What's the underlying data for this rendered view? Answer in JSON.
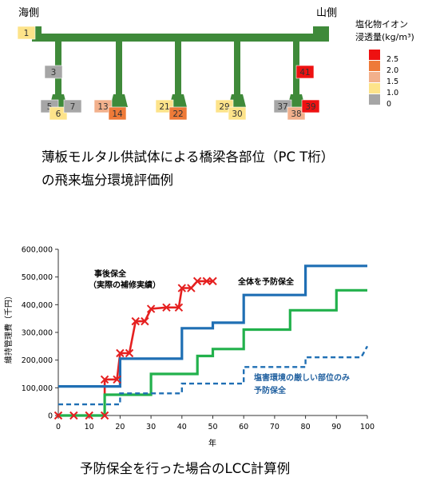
{
  "diagram": {
    "left_label": "海側",
    "right_label": "山側",
    "legend_title_1": "塩化物イオン",
    "legend_title_2": "浸透量(kg/m³)",
    "legend": [
      {
        "label": "2.5",
        "color": "#ee1111"
      },
      {
        "label": "2.0",
        "color": "#ee7a38"
      },
      {
        "label": "1.5",
        "color": "#f2b08c"
      },
      {
        "label": "1.0",
        "color": "#fde38a"
      },
      {
        "label": "0",
        "color": "#a6a6a6"
      }
    ],
    "specimens": [
      {
        "id": "1",
        "color": "#fde38a"
      },
      {
        "id": "3",
        "color": "#a6a6a6"
      },
      {
        "id": "5",
        "color": "#a6a6a6"
      },
      {
        "id": "6",
        "color": "#fde38a"
      },
      {
        "id": "7",
        "color": "#a6a6a6"
      },
      {
        "id": "13",
        "color": "#f2b08c"
      },
      {
        "id": "14",
        "color": "#ee7a38"
      },
      {
        "id": "21",
        "color": "#fde38a"
      },
      {
        "id": "22",
        "color": "#ee7a38"
      },
      {
        "id": "29",
        "color": "#fde38a"
      },
      {
        "id": "30",
        "color": "#fde38a"
      },
      {
        "id": "37",
        "color": "#a6a6a6"
      },
      {
        "id": "38",
        "color": "#f2b08c"
      },
      {
        "id": "39",
        "color": "#ee1111"
      },
      {
        "id": "41",
        "color": "#ee1111"
      }
    ],
    "caption_line1": "薄板モルタル供試体による橋梁各部位（PC T桁）",
    "caption_line2": "の飛来塩分環境評価例"
  },
  "chart_data": {
    "type": "line",
    "ylabel": "維持管理費（千円）",
    "xlabel": "年",
    "xlim": [
      0,
      100
    ],
    "ylim": [
      0,
      600000
    ],
    "x_ticks": [
      0,
      10,
      20,
      30,
      40,
      50,
      60,
      70,
      80,
      90,
      100
    ],
    "y_ticks": [
      {
        "value": 0,
        "label": "0"
      },
      {
        "value": 100000,
        "label": "100,000"
      },
      {
        "value": 200000,
        "label": "200,000"
      },
      {
        "value": 300000,
        "label": "300,000"
      },
      {
        "value": 400000,
        "label": "400,000"
      },
      {
        "value": 500000,
        "label": "500,000"
      },
      {
        "value": 600000,
        "label": "600,000"
      }
    ],
    "grid": false,
    "series": [
      {
        "name": "事後保全（実際の補修実績）",
        "color": "#e52020",
        "style": "step-marker",
        "points": [
          [
            0,
            0
          ],
          [
            5,
            0
          ],
          [
            10,
            0
          ],
          [
            15,
            0
          ],
          [
            15,
            130000
          ],
          [
            19,
            130000
          ],
          [
            20,
            225000
          ],
          [
            23,
            225000
          ],
          [
            25,
            340000
          ],
          [
            28,
            340000
          ],
          [
            30,
            385000
          ],
          [
            35,
            390000
          ],
          [
            39,
            390000
          ],
          [
            40,
            460000
          ],
          [
            43,
            460000
          ],
          [
            45,
            485000
          ],
          [
            48,
            485000
          ],
          [
            50,
            485000
          ]
        ]
      },
      {
        "name": "全体を予防保全",
        "color": "#1f6fb4",
        "style": "step",
        "points": [
          [
            0,
            105000
          ],
          [
            20,
            105000
          ],
          [
            20,
            205000
          ],
          [
            40,
            205000
          ],
          [
            40,
            315000
          ],
          [
            50,
            315000
          ],
          [
            50,
            335000
          ],
          [
            60,
            335000
          ],
          [
            60,
            435000
          ],
          [
            80,
            435000
          ],
          [
            80,
            540000
          ],
          [
            100,
            540000
          ]
        ]
      },
      {
        "name": "",
        "color": "#22b14c",
        "style": "step",
        "points": [
          [
            0,
            0
          ],
          [
            15,
            0
          ],
          [
            15,
            75000
          ],
          [
            30,
            75000
          ],
          [
            30,
            150000
          ],
          [
            45,
            150000
          ],
          [
            45,
            215000
          ],
          [
            50,
            215000
          ],
          [
            50,
            240000
          ],
          [
            60,
            240000
          ],
          [
            60,
            310000
          ],
          [
            75,
            310000
          ],
          [
            75,
            380000
          ],
          [
            90,
            380000
          ],
          [
            90,
            452000
          ],
          [
            100,
            452000
          ]
        ]
      },
      {
        "name": "塩害環境の厳しい部位のみ予防保全",
        "color": "#1f6fb4",
        "style": "dashed-step",
        "points": [
          [
            0,
            40000
          ],
          [
            20,
            40000
          ],
          [
            20,
            80000
          ],
          [
            40,
            80000
          ],
          [
            40,
            115000
          ],
          [
            60,
            115000
          ],
          [
            60,
            175000
          ],
          [
            80,
            175000
          ],
          [
            80,
            210000
          ],
          [
            98,
            210000
          ],
          [
            100,
            250000
          ]
        ]
      }
    ],
    "annotations": [
      {
        "text": "事後保全",
        "series": 0
      },
      {
        "text": "（実際の補修実績）",
        "series": 0
      },
      {
        "text": "全体を予防保全",
        "series": 1
      },
      {
        "text": "塩害環境の厳しい部位のみ",
        "series": 3
      },
      {
        "text": "予防保全",
        "series": 3
      }
    ],
    "caption": "予防保全を行った場合のLCC計算例"
  }
}
